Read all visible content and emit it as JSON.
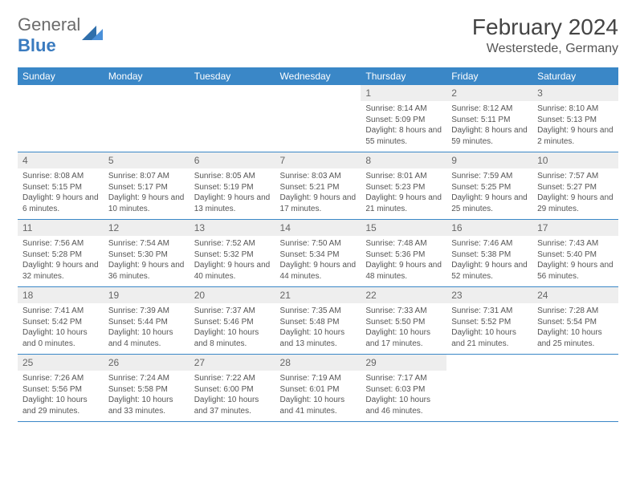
{
  "logo": {
    "text_a": "General",
    "text_b": "Blue"
  },
  "title": "February 2024",
  "location": "Westerstede, Germany",
  "colors": {
    "header_bg": "#3a87c7",
    "header_fg": "#ffffff",
    "daynum_bg": "#eeeeee",
    "rule": "#3a87c7",
    "text": "#555555"
  },
  "day_headers": [
    "Sunday",
    "Monday",
    "Tuesday",
    "Wednesday",
    "Thursday",
    "Friday",
    "Saturday"
  ],
  "weeks": [
    {
      "nums": [
        "",
        "",
        "",
        "",
        "1",
        "2",
        "3"
      ],
      "cells": [
        null,
        null,
        null,
        null,
        {
          "sunrise": "8:14 AM",
          "sunset": "5:09 PM",
          "daylight": "8 hours and 55 minutes."
        },
        {
          "sunrise": "8:12 AM",
          "sunset": "5:11 PM",
          "daylight": "8 hours and 59 minutes."
        },
        {
          "sunrise": "8:10 AM",
          "sunset": "5:13 PM",
          "daylight": "9 hours and 2 minutes."
        }
      ]
    },
    {
      "nums": [
        "4",
        "5",
        "6",
        "7",
        "8",
        "9",
        "10"
      ],
      "cells": [
        {
          "sunrise": "8:08 AM",
          "sunset": "5:15 PM",
          "daylight": "9 hours and 6 minutes."
        },
        {
          "sunrise": "8:07 AM",
          "sunset": "5:17 PM",
          "daylight": "9 hours and 10 minutes."
        },
        {
          "sunrise": "8:05 AM",
          "sunset": "5:19 PM",
          "daylight": "9 hours and 13 minutes."
        },
        {
          "sunrise": "8:03 AM",
          "sunset": "5:21 PM",
          "daylight": "9 hours and 17 minutes."
        },
        {
          "sunrise": "8:01 AM",
          "sunset": "5:23 PM",
          "daylight": "9 hours and 21 minutes."
        },
        {
          "sunrise": "7:59 AM",
          "sunset": "5:25 PM",
          "daylight": "9 hours and 25 minutes."
        },
        {
          "sunrise": "7:57 AM",
          "sunset": "5:27 PM",
          "daylight": "9 hours and 29 minutes."
        }
      ]
    },
    {
      "nums": [
        "11",
        "12",
        "13",
        "14",
        "15",
        "16",
        "17"
      ],
      "cells": [
        {
          "sunrise": "7:56 AM",
          "sunset": "5:28 PM",
          "daylight": "9 hours and 32 minutes."
        },
        {
          "sunrise": "7:54 AM",
          "sunset": "5:30 PM",
          "daylight": "9 hours and 36 minutes."
        },
        {
          "sunrise": "7:52 AM",
          "sunset": "5:32 PM",
          "daylight": "9 hours and 40 minutes."
        },
        {
          "sunrise": "7:50 AM",
          "sunset": "5:34 PM",
          "daylight": "9 hours and 44 minutes."
        },
        {
          "sunrise": "7:48 AM",
          "sunset": "5:36 PM",
          "daylight": "9 hours and 48 minutes."
        },
        {
          "sunrise": "7:46 AM",
          "sunset": "5:38 PM",
          "daylight": "9 hours and 52 minutes."
        },
        {
          "sunrise": "7:43 AM",
          "sunset": "5:40 PM",
          "daylight": "9 hours and 56 minutes."
        }
      ]
    },
    {
      "nums": [
        "18",
        "19",
        "20",
        "21",
        "22",
        "23",
        "24"
      ],
      "cells": [
        {
          "sunrise": "7:41 AM",
          "sunset": "5:42 PM",
          "daylight": "10 hours and 0 minutes."
        },
        {
          "sunrise": "7:39 AM",
          "sunset": "5:44 PM",
          "daylight": "10 hours and 4 minutes."
        },
        {
          "sunrise": "7:37 AM",
          "sunset": "5:46 PM",
          "daylight": "10 hours and 8 minutes."
        },
        {
          "sunrise": "7:35 AM",
          "sunset": "5:48 PM",
          "daylight": "10 hours and 13 minutes."
        },
        {
          "sunrise": "7:33 AM",
          "sunset": "5:50 PM",
          "daylight": "10 hours and 17 minutes."
        },
        {
          "sunrise": "7:31 AM",
          "sunset": "5:52 PM",
          "daylight": "10 hours and 21 minutes."
        },
        {
          "sunrise": "7:28 AM",
          "sunset": "5:54 PM",
          "daylight": "10 hours and 25 minutes."
        }
      ]
    },
    {
      "nums": [
        "25",
        "26",
        "27",
        "28",
        "29",
        "",
        ""
      ],
      "cells": [
        {
          "sunrise": "7:26 AM",
          "sunset": "5:56 PM",
          "daylight": "10 hours and 29 minutes."
        },
        {
          "sunrise": "7:24 AM",
          "sunset": "5:58 PM",
          "daylight": "10 hours and 33 minutes."
        },
        {
          "sunrise": "7:22 AM",
          "sunset": "6:00 PM",
          "daylight": "10 hours and 37 minutes."
        },
        {
          "sunrise": "7:19 AM",
          "sunset": "6:01 PM",
          "daylight": "10 hours and 41 minutes."
        },
        {
          "sunrise": "7:17 AM",
          "sunset": "6:03 PM",
          "daylight": "10 hours and 46 minutes."
        },
        null,
        null
      ]
    }
  ],
  "labels": {
    "sunrise": "Sunrise: ",
    "sunset": "Sunset: ",
    "daylight": "Daylight: "
  }
}
